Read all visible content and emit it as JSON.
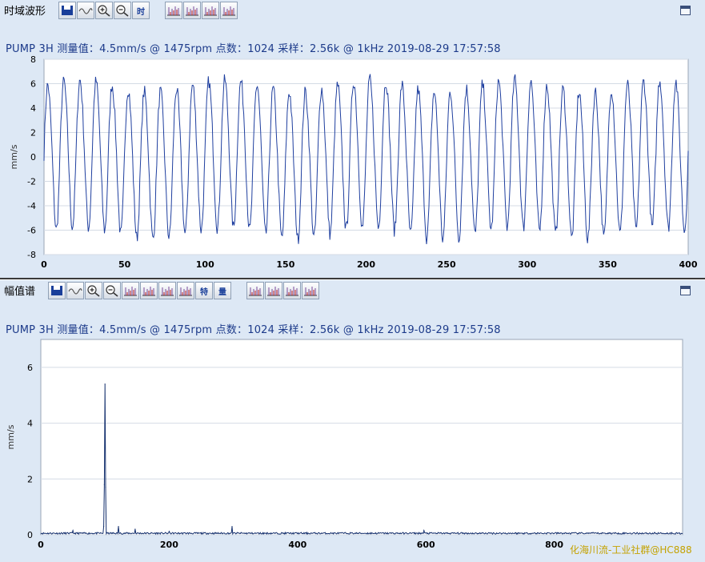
{
  "top_panel": {
    "title": "时域波形",
    "toolbar": [
      {
        "name": "save-icon"
      },
      {
        "name": "waveform-icon"
      },
      {
        "name": "zoom-in-icon"
      },
      {
        "name": "zoom-out-icon"
      },
      {
        "name": "time-icon",
        "text": "时"
      },
      {
        "name": "cursor-single-icon"
      },
      {
        "name": "cursor-harmonic-icon"
      },
      {
        "name": "cursor-sideband-icon"
      },
      {
        "name": "cursor-peak-icon"
      }
    ],
    "info": "PUMP 3H  测量值：4.5mm/s @ 1475rpm  点数：1024 采样：2.56k @ 1kHz  2019-08-29 17:57:58"
  },
  "bottom_panel": {
    "title": "幅值谱",
    "toolbar": [
      {
        "name": "save-icon"
      },
      {
        "name": "waveform-icon"
      },
      {
        "name": "zoom-in-icon"
      },
      {
        "name": "zoom-out-icon"
      },
      {
        "name": "cursor-single-icon"
      },
      {
        "name": "cursor-harmonic-icon"
      },
      {
        "name": "cursor-band-icon"
      },
      {
        "name": "cursor-multi-icon"
      },
      {
        "name": "feature-icon",
        "text": "特"
      },
      {
        "name": "amount-icon",
        "text": "量"
      },
      {
        "name": "cursor-single-icon"
      },
      {
        "name": "cursor-harmonic-icon"
      },
      {
        "name": "cursor-sideband-icon"
      },
      {
        "name": "cursor-peak-icon"
      }
    ],
    "info": "PUMP 3H  测量值：4.5mm/s @ 1475rpm  点数：1024 采样：2.56k @ 1kHz  2019-08-29 17:57:58"
  },
  "watermark": "化海川流-工业社群@HC888",
  "chart_data": [
    {
      "type": "line",
      "ylabel": "mm/s",
      "xlim": [
        0,
        400
      ],
      "ylim": [
        -8,
        8
      ],
      "xticks": [
        0,
        50,
        100,
        150,
        200,
        250,
        300,
        350,
        400
      ],
      "yticks": [
        -8,
        -6,
        -4,
        -2,
        0,
        2,
        4,
        6,
        8
      ],
      "grid": true,
      "line_color": "#1f3f9f",
      "waveform": {
        "cycles": 40,
        "amplitude": 6.0
      }
    },
    {
      "type": "line",
      "ylabel": "mm/s",
      "xlim": [
        0,
        1000
      ],
      "ylim": [
        0,
        7
      ],
      "xticks": [
        0,
        200,
        400,
        600,
        800
      ],
      "yticks": [
        0,
        2,
        4,
        6
      ],
      "grid": true,
      "line_color": "#14306e",
      "peaks": [
        {
          "x": 50,
          "y": 0.15
        },
        {
          "x": 98,
          "y": 0.3
        },
        {
          "x": 99,
          "y": 1.8
        },
        {
          "x": 100,
          "y": 5.4
        },
        {
          "x": 101,
          "y": 1.7
        },
        {
          "x": 121,
          "y": 0.3
        },
        {
          "x": 147,
          "y": 0.2
        },
        {
          "x": 200,
          "y": 0.12
        },
        {
          "x": 298,
          "y": 0.3
        },
        {
          "x": 597,
          "y": 0.15
        }
      ],
      "noise_floor": 0.06
    }
  ]
}
